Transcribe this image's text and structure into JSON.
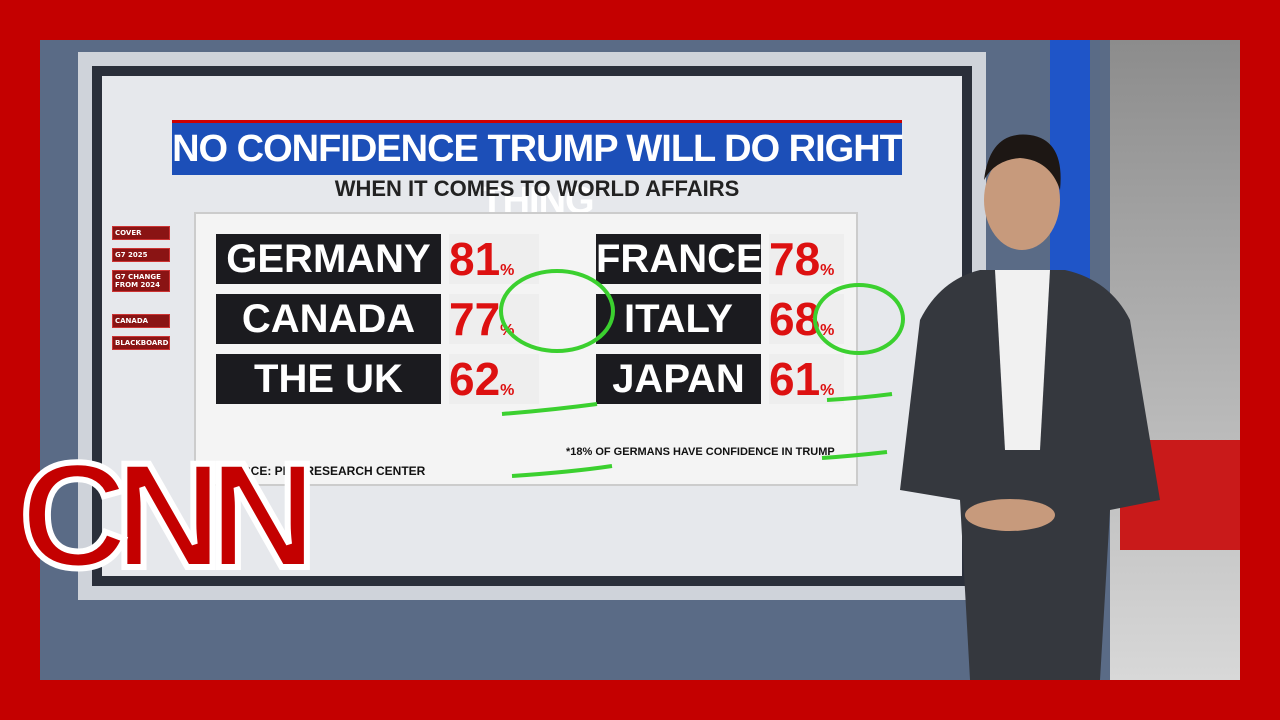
{
  "header": {
    "title": "NO CONFIDENCE TRUMP WILL DO RIGHT THING",
    "subtitle": "WHEN IT COMES TO WORLD AFFAIRS"
  },
  "menu": [
    "COVER",
    "G7 2025",
    "G7 CHANGE FROM 2024",
    "CANADA",
    "BLACKBOARD"
  ],
  "rows": [
    {
      "country": "GERMANY",
      "value": "81",
      "sign": "%"
    },
    {
      "country": "CANADA",
      "value": "77",
      "sign": "%"
    },
    {
      "country": "THE UK",
      "value": "62",
      "sign": "%"
    },
    {
      "country": "FRANCE",
      "value": "78",
      "sign": "%"
    },
    {
      "country": "ITALY",
      "value": "68",
      "sign": "%"
    },
    {
      "country": "JAPAN",
      "value": "61",
      "sign": "%"
    }
  ],
  "source": "SOURCE: PEW RESEARCH CENTER",
  "footnote": "*18% OF GERMANS HAVE CONFIDENCE IN TRUMP",
  "logo": "CNN"
}
